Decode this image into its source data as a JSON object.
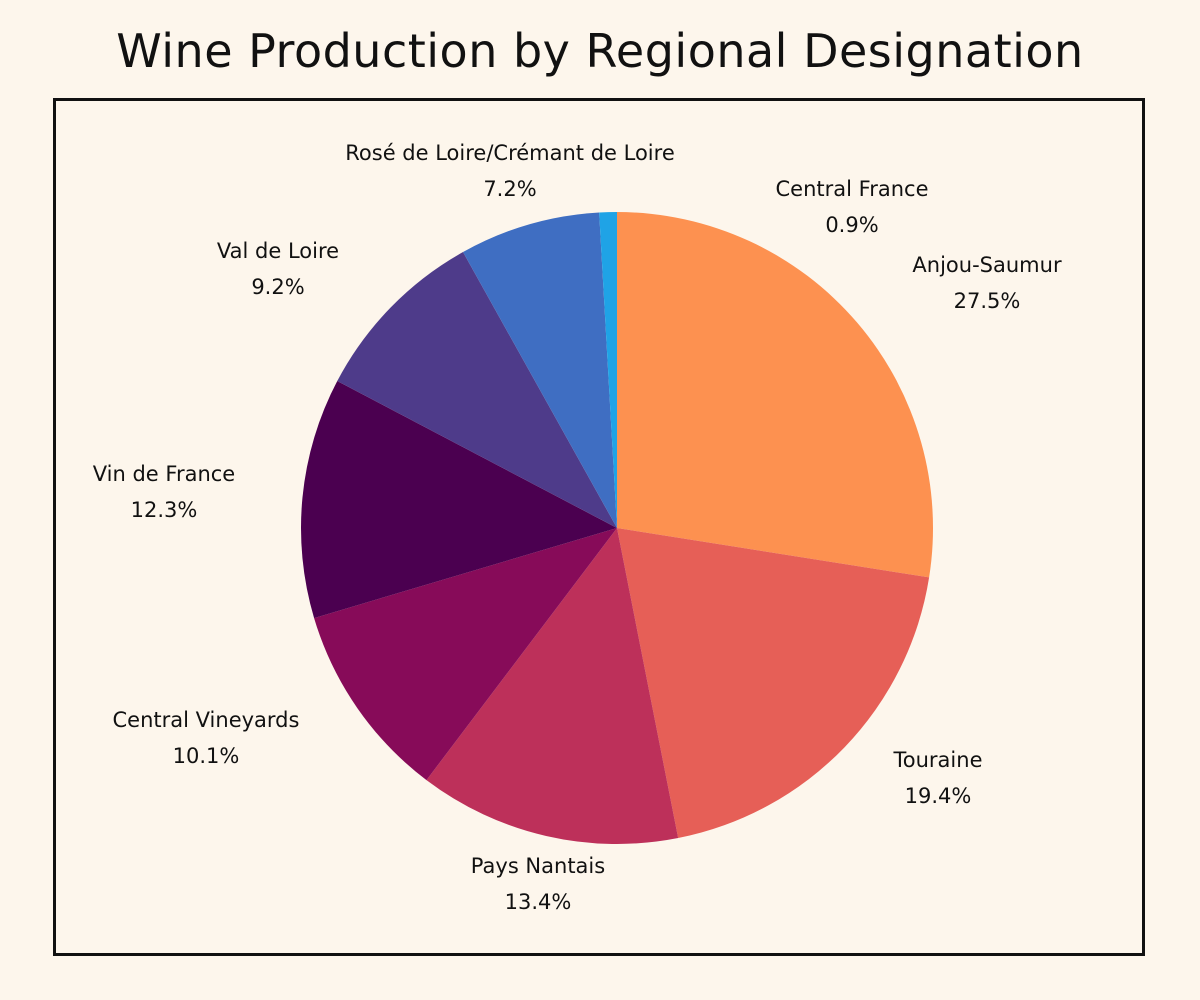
{
  "chart_data": {
    "type": "pie",
    "title": "Wine Production by Regional Designation",
    "start_angle_deg": 0,
    "direction": "clockwise",
    "slices": [
      {
        "label": "Anjou-Saumur",
        "value": 27.5,
        "value_text": "27.5%",
        "color": "#fd9150"
      },
      {
        "label": "Touraine",
        "value": 19.4,
        "value_text": "19.4%",
        "color": "#e65f57"
      },
      {
        "label": "Pays Nantais",
        "value": 13.4,
        "value_text": "13.4%",
        "color": "#bd305a"
      },
      {
        "label": "Central Vineyards",
        "value": 10.1,
        "value_text": "10.1%",
        "color": "#870b59"
      },
      {
        "label": "Vin de France",
        "value": 12.3,
        "value_text": "12.3%",
        "color": "#4b0050"
      },
      {
        "label": "Val de Loire",
        "value": 9.2,
        "value_text": "9.2%",
        "color": "#4e3b8a"
      },
      {
        "label": "Rosé de Loire/Crémant de Loire",
        "value": 7.2,
        "value_text": "7.2%",
        "color": "#3f6ec2"
      },
      {
        "label": "Central France",
        "value": 0.9,
        "value_text": "0.9%",
        "color": "#1fa3e6"
      }
    ]
  }
}
